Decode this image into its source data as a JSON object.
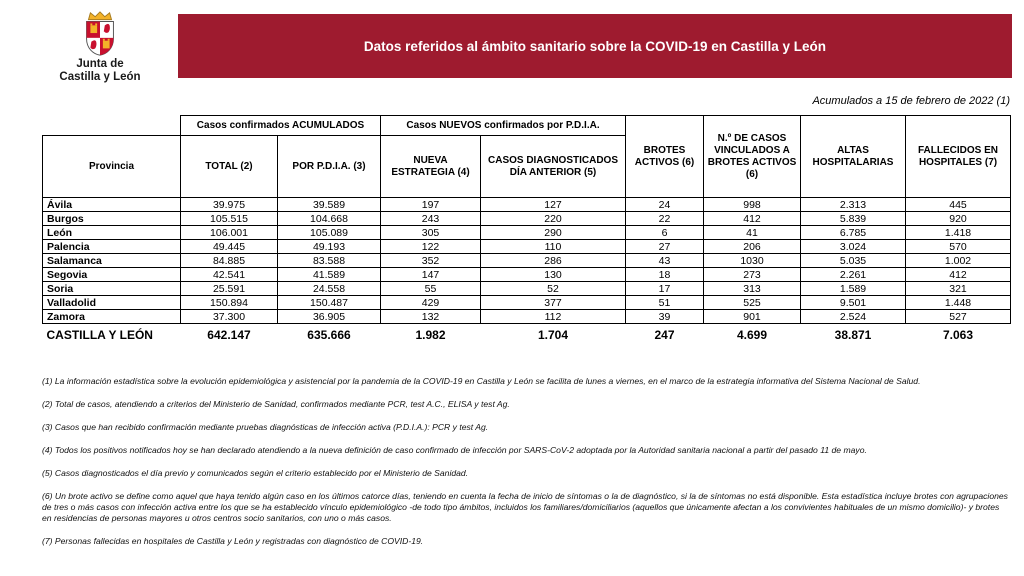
{
  "colors": {
    "banner": "#9e1b2f",
    "shield_red": "#c8102e",
    "shield_gold": "#f3b229"
  },
  "logo": {
    "text_line1": "Junta de",
    "text_line2": "Castilla y León"
  },
  "banner": {
    "title": "Datos referidos al ámbito sanitario sobre la COVID-19 en Castilla y León"
  },
  "date_note": "Acumulados a 15 de febrero de 2022 (1)",
  "table": {
    "col_province": "Provincia",
    "group1": "Casos confirmados ACUMULADOS",
    "group2": "Casos NUEVOS confirmados por P.D.I.A.",
    "sub_columns": [
      "TOTAL (2)",
      "POR P.D.I.A. (3)",
      "NUEVA ESTRATEGIA (4)",
      "CASOS DIAGNOSTICADOS DÍA ANTERIOR (5)"
    ],
    "tall_columns": [
      "BROTES ACTIVOS (6)",
      "N.º DE CASOS VINCULADOS A BROTES ACTIVOS (6)",
      "ALTAS HOSPITALARIAS",
      "FALLECIDOS EN HOSPITALES (7)"
    ],
    "rows": [
      [
        "Ávila",
        "39.975",
        "39.589",
        "197",
        "127",
        "24",
        "998",
        "2.313",
        "445"
      ],
      [
        "Burgos",
        "105.515",
        "104.668",
        "243",
        "220",
        "22",
        "412",
        "5.839",
        "920"
      ],
      [
        "León",
        "106.001",
        "105.089",
        "305",
        "290",
        "6",
        "41",
        "6.785",
        "1.418"
      ],
      [
        "Palencia",
        "49.445",
        "49.193",
        "122",
        "110",
        "27",
        "206",
        "3.024",
        "570"
      ],
      [
        "Salamanca",
        "84.885",
        "83.588",
        "352",
        "286",
        "43",
        "1030",
        "5.035",
        "1.002"
      ],
      [
        "Segovia",
        "42.541",
        "41.589",
        "147",
        "130",
        "18",
        "273",
        "2.261",
        "412"
      ],
      [
        "Soria",
        "25.591",
        "24.558",
        "55",
        "52",
        "17",
        "313",
        "1.589",
        "321"
      ],
      [
        "Valladolid",
        "150.894",
        "150.487",
        "429",
        "377",
        "51",
        "525",
        "9.501",
        "1.448"
      ],
      [
        "Zamora",
        "37.300",
        "36.905",
        "132",
        "112",
        "39",
        "901",
        "2.524",
        "527"
      ]
    ],
    "total_row": [
      "CASTILLA Y LEÓN",
      "642.147",
      "635.666",
      "1.982",
      "1.704",
      "247",
      "4.699",
      "38.871",
      "7.063"
    ]
  },
  "footnotes": [
    "(1) La información estadística sobre la evolución epidemiológica y asistencial por la pandemia de la COVID-19 en Castilla y León se facilita de lunes a viernes, en el marco de la estrategia informativa del Sistema Nacional de Salud.",
    "(2) Total de casos, atendiendo a criterios del Ministerio de Sanidad, confirmados mediante PCR, test A.C., ELISA y test Ag.",
    "(3) Casos que han recibido confirmación mediante pruebas diagnósticas de infección activa (P.D.I.A.): PCR y test Ag.",
    "(4) Todos los positivos notificados hoy se han declarado atendiendo a la nueva definición de caso confirmado de infección por SARS-CoV-2 adoptada por la Autoridad sanitaria nacional a partir del pasado 11 de mayo.",
    "(5) Casos diagnosticados el día previo y comunicados según el criterio establecido por el Ministerio de Sanidad.",
    "(6) Un brote activo se define como aquel que haya tenido algún caso en los últimos catorce días, teniendo en cuenta la fecha de inicio de síntomas o la de diagnóstico, si la de síntomas no está disponible. Esta estadística incluye brotes con agrupaciones de tres o más casos con infección activa entre los que se ha establecido vínculo epidemiológico -de todo tipo ámbitos, incluidos los familiares/domiciliarios (aquellos que únicamente afectan a los convivientes habituales de un mismo domicilio)- y brotes en residencias de personas mayores u otros centros socio sanitarios, con uno o más casos.",
    "(7) Personas fallecidas en hospitales de Castilla y León y registradas con diagnóstico de COVID-19."
  ]
}
